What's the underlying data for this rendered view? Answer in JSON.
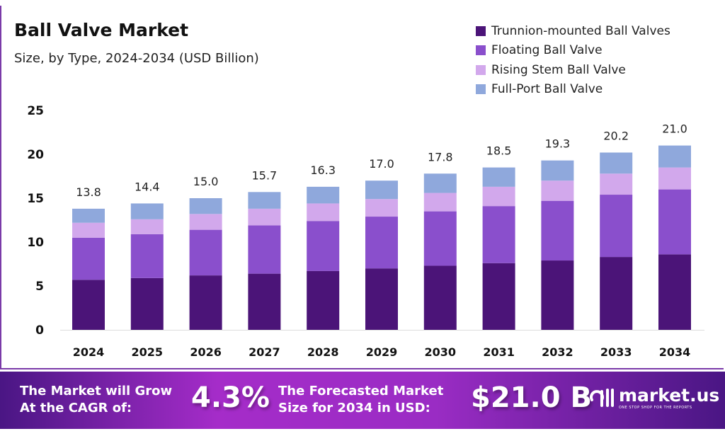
{
  "chart_data": {
    "type": "bar",
    "stacked": true,
    "title": "Ball Valve Market",
    "subtitle": "Size, by Type, 2024-2034 (USD Billion)",
    "categories": [
      "2024",
      "2025",
      "2026",
      "2027",
      "2028",
      "2029",
      "2030",
      "2031",
      "2032",
      "2033",
      "2034"
    ],
    "series": [
      {
        "name": "Trunnion-mounted Ball Valves",
        "color": "#4b1478",
        "values": [
          5.7,
          5.9,
          6.2,
          6.4,
          6.7,
          7.0,
          7.3,
          7.6,
          7.9,
          8.3,
          8.6
        ]
      },
      {
        "name": "Floating Ball Valve",
        "color": "#8a4fcc",
        "values": [
          4.8,
          5.0,
          5.2,
          5.5,
          5.7,
          5.9,
          6.2,
          6.5,
          6.8,
          7.1,
          7.4
        ]
      },
      {
        "name": "Rising Stem Ball Valve",
        "color": "#d2a8ec",
        "values": [
          1.7,
          1.7,
          1.8,
          1.9,
          2.0,
          2.0,
          2.1,
          2.2,
          2.3,
          2.4,
          2.5
        ]
      },
      {
        "name": "Full-Port Ball Valve",
        "color": "#8fa8dc",
        "values": [
          1.6,
          1.8,
          1.8,
          1.9,
          1.9,
          2.1,
          2.2,
          2.2,
          2.3,
          2.4,
          2.5
        ]
      }
    ],
    "totals": [
      "13.8",
      "14.4",
      "15.0",
      "15.7",
      "16.3",
      "17.0",
      "17.8",
      "18.5",
      "19.3",
      "20.2",
      "21.0"
    ],
    "yticks": [
      "0",
      "5",
      "10",
      "15",
      "20",
      "25"
    ],
    "ylim": [
      0,
      25
    ],
    "grid": false,
    "legend": "top-right"
  },
  "footer": {
    "cagr_text_1": "The Market will Grow",
    "cagr_text_2": "At the CAGR of:",
    "cagr_value": "4.3%",
    "forecast_text_1": "The Forecasted Market",
    "forecast_text_2": "Size for 2034 in USD:",
    "forecast_value": "$21.0 B",
    "brand": "market.us",
    "tagline": "ONE STOP SHOP FOR THE REPORTS"
  }
}
